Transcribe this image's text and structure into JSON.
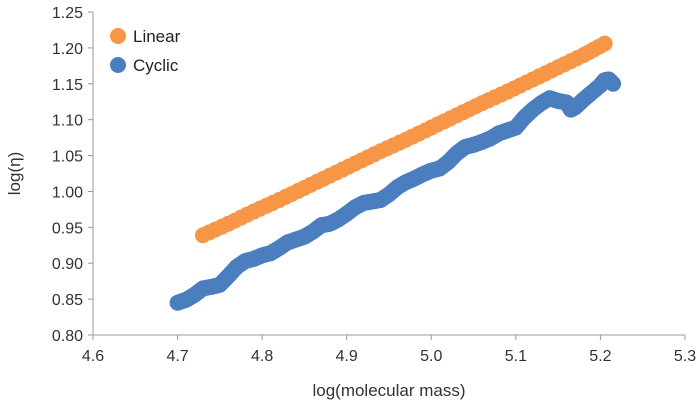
{
  "chart_data": {
    "type": "scatter",
    "title": "",
    "xlabel": "log(molecular mass)",
    "ylabel": "log(η)",
    "xlim": [
      4.6,
      5.3
    ],
    "ylim": [
      0.8,
      1.25
    ],
    "x_ticks": [
      "4.6",
      "4.7",
      "4.8",
      "4.9",
      "5.0",
      "5.1",
      "5.2",
      "5.3"
    ],
    "y_ticks": [
      "0.80",
      "0.85",
      "0.90",
      "0.95",
      "1.00",
      "1.05",
      "1.10",
      "1.15",
      "1.20",
      "1.25"
    ],
    "grid": false,
    "legend": "top-left",
    "series": [
      {
        "name": "Linear",
        "color": "#f79646",
        "points": [
          [
            4.73,
            0.939
          ],
          [
            4.76,
            0.955
          ],
          [
            4.79,
            0.972
          ],
          [
            4.82,
            0.988
          ],
          [
            4.85,
            1.005
          ],
          [
            4.88,
            1.022
          ],
          [
            4.91,
            1.039
          ],
          [
            4.94,
            1.056
          ],
          [
            4.97,
            1.072
          ],
          [
            5.0,
            1.089
          ],
          [
            5.03,
            1.106
          ],
          [
            5.06,
            1.123
          ],
          [
            5.09,
            1.139
          ],
          [
            5.12,
            1.156
          ],
          [
            5.15,
            1.173
          ],
          [
            5.18,
            1.19
          ],
          [
            5.205,
            1.206
          ]
        ]
      },
      {
        "name": "Cyclic",
        "color": "#4a7ebf",
        "points": [
          [
            4.7,
            0.845
          ],
          [
            4.71,
            0.849
          ],
          [
            4.72,
            0.856
          ],
          [
            4.73,
            0.865
          ],
          [
            4.74,
            0.867
          ],
          [
            4.75,
            0.87
          ],
          [
            4.76,
            0.882
          ],
          [
            4.77,
            0.895
          ],
          [
            4.78,
            0.903
          ],
          [
            4.79,
            0.906
          ],
          [
            4.8,
            0.911
          ],
          [
            4.81,
            0.914
          ],
          [
            4.82,
            0.921
          ],
          [
            4.83,
            0.929
          ],
          [
            4.84,
            0.933
          ],
          [
            4.85,
            0.937
          ],
          [
            4.86,
            0.944
          ],
          [
            4.87,
            0.953
          ],
          [
            4.88,
            0.955
          ],
          [
            4.89,
            0.961
          ],
          [
            4.9,
            0.969
          ],
          [
            4.91,
            0.978
          ],
          [
            4.92,
            0.984
          ],
          [
            4.93,
            0.986
          ],
          [
            4.94,
            0.988
          ],
          [
            4.95,
            0.996
          ],
          [
            4.96,
            1.006
          ],
          [
            4.97,
            1.013
          ],
          [
            4.98,
            1.018
          ],
          [
            4.99,
            1.024
          ],
          [
            5.0,
            1.029
          ],
          [
            5.01,
            1.032
          ],
          [
            5.02,
            1.041
          ],
          [
            5.03,
            1.053
          ],
          [
            5.04,
            1.062
          ],
          [
            5.05,
            1.065
          ],
          [
            5.06,
            1.069
          ],
          [
            5.07,
            1.074
          ],
          [
            5.08,
            1.081
          ],
          [
            5.09,
            1.085
          ],
          [
            5.1,
            1.089
          ],
          [
            5.11,
            1.103
          ],
          [
            5.12,
            1.114
          ],
          [
            5.13,
            1.123
          ],
          [
            5.14,
            1.13
          ],
          [
            5.15,
            1.126
          ],
          [
            5.16,
            1.124
          ],
          [
            5.165,
            1.114
          ],
          [
            5.17,
            1.117
          ],
          [
            5.18,
            1.128
          ],
          [
            5.19,
            1.138
          ],
          [
            5.2,
            1.148
          ],
          [
            5.205,
            1.155
          ],
          [
            5.21,
            1.156
          ],
          [
            5.215,
            1.15
          ]
        ]
      }
    ]
  }
}
